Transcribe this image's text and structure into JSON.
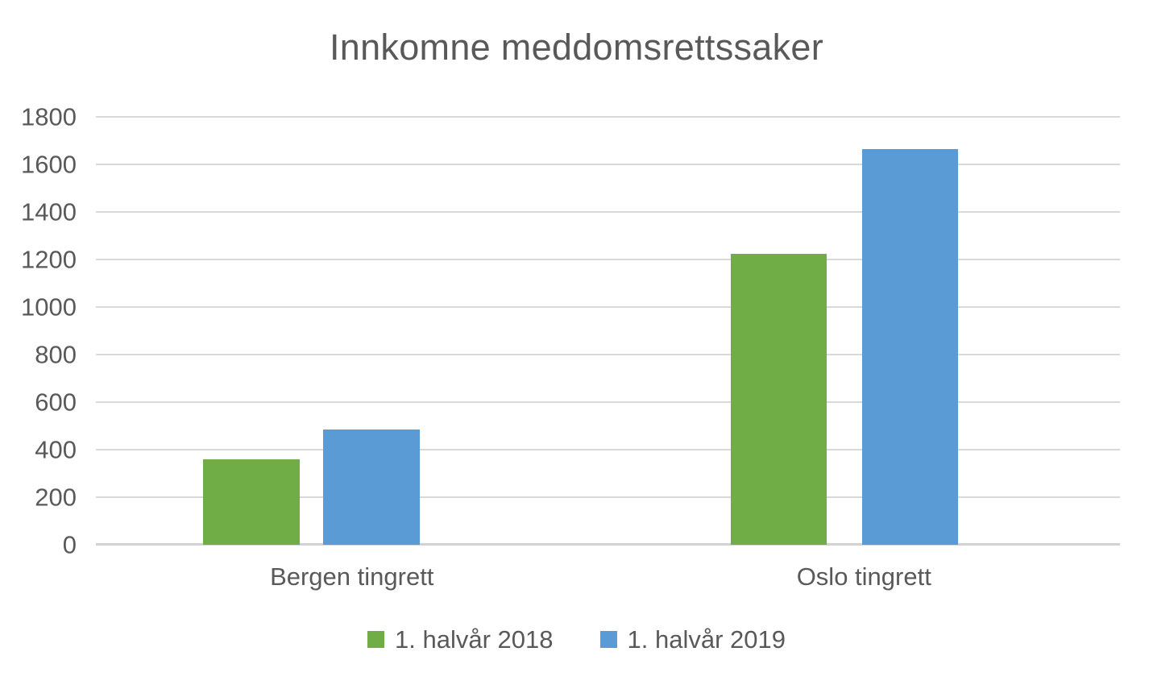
{
  "chart_data": {
    "type": "bar",
    "title": "Innkomne meddomsrettssaker",
    "categories": [
      "Bergen tingrett",
      "Oslo tingrett"
    ],
    "series": [
      {
        "name": "1. halvår 2018",
        "color": "#70AD47",
        "values": [
          360,
          1225
        ]
      },
      {
        "name": "1. halvår 2019",
        "color": "#5B9BD5",
        "values": [
          485,
          1665
        ]
      }
    ],
    "ylim": [
      0,
      1800
    ],
    "ytick_step": 200,
    "yticks": [
      0,
      200,
      400,
      600,
      800,
      1000,
      1200,
      1400,
      1600,
      1800
    ],
    "grid": true,
    "legend_position": "bottom"
  },
  "style": {
    "text_color": "#595959",
    "gridline_color": "#D9D9D9",
    "axis_line_color": "#D2D2D2",
    "background": "#FFFFFF",
    "series_colors": [
      "#70AD47",
      "#5B9BD5"
    ]
  }
}
